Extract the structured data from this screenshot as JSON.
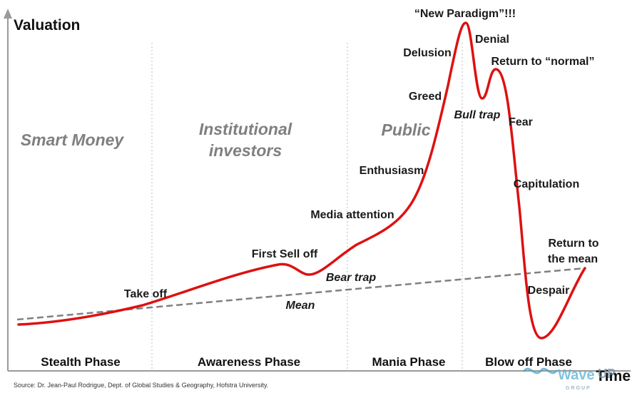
{
  "axes": {
    "y_title": "Valuation",
    "x_title": "Time"
  },
  "phase_groups": [
    "Smart Money",
    "Institutional",
    "investors",
    "Public"
  ],
  "phases": [
    "Stealth Phase",
    "Awareness Phase",
    "Mania Phase",
    "Blow off Phase"
  ],
  "annotations": {
    "take_off": "Take off",
    "first_sell_off": "First Sell off",
    "bear_trap": "Bear trap",
    "mean": "Mean",
    "media_attention": "Media attention",
    "enthusiasm": "Enthusiasm",
    "greed": "Greed",
    "delusion": "Delusion",
    "new_paradigm": "“New Paradigm”!!!",
    "denial": "Denial",
    "return_to_normal": "Return to “normal”",
    "bull_trap": "Bull trap",
    "fear": "Fear",
    "capitulation": "Capitulation",
    "return_to_the": "Return to",
    "the_mean": "the mean",
    "despair": "Despair"
  },
  "source": "Source: Dr. Jean-Paul Rodrigue, Dept. of Global Studies & Geography, Hofstra University.",
  "watermark": {
    "brand": "Wave",
    "suffix": "UP",
    "sub": "GROUP"
  },
  "colors": {
    "curve": "#dd1111",
    "mean_line": "#808080",
    "phase_text": "#7f7f7f",
    "divider": "#bbbbbb"
  }
}
